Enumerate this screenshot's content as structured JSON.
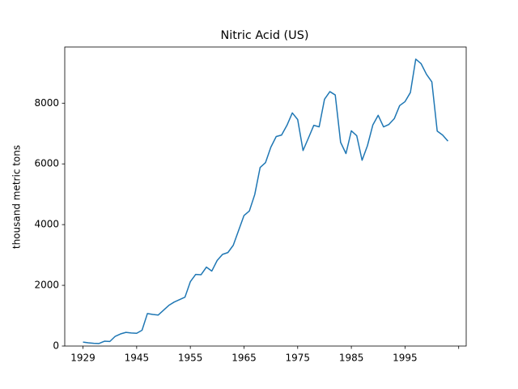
{
  "chart_data": {
    "type": "line",
    "title": "Nitric Acid (US)",
    "ylabel": "thousand metric tons",
    "categories": [
      "1929",
      null,
      null,
      null,
      null,
      null,
      null,
      null,
      null,
      null,
      "1945",
      null,
      null,
      null,
      null,
      null,
      null,
      null,
      null,
      null,
      "1955",
      null,
      null,
      null,
      null,
      null,
      null,
      null,
      null,
      null,
      "1965",
      null,
      null,
      null,
      null,
      null,
      null,
      null,
      null,
      null,
      "1975",
      null,
      null,
      null,
      null,
      null,
      null,
      null,
      null,
      null,
      "1985",
      null,
      null,
      null,
      null,
      null,
      null,
      null,
      null,
      null,
      "1995",
      null,
      null,
      null,
      null,
      null,
      null,
      null,
      null
    ],
    "series": [
      {
        "color": "#1f77b4",
        "values": [
          130,
          107,
          90,
          85,
          160,
          150,
          320,
          400,
          450,
          430,
          420,
          520,
          1070,
          1040,
          1020,
          1180,
          1340,
          1450,
          1530,
          1610,
          2120,
          2360,
          2350,
          2600,
          2470,
          2820,
          3020,
          3080,
          3320,
          3810,
          4300,
          4450,
          4990,
          5880,
          6040,
          6550,
          6900,
          6950,
          7270,
          7680,
          7460,
          6440,
          6850,
          7270,
          7220,
          8130,
          8380,
          8270,
          6710,
          6340,
          7090,
          6930,
          6120,
          6600,
          7280,
          7600,
          7220,
          7300,
          7490,
          7920,
          8050,
          8350,
          9450,
          9300,
          8950,
          8700,
          7080,
          6950,
          6750
        ]
      }
    ],
    "ylim": [
      0,
      9850
    ],
    "yticks": [
      0,
      2000,
      4000,
      6000,
      8000
    ]
  }
}
